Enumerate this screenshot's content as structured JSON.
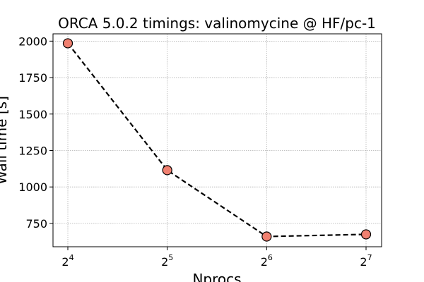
{
  "chart_data": {
    "type": "line",
    "title": "ORCA 5.0.2 timings: valinomycine @ HF/pc-1",
    "xlabel": "Nprocs",
    "ylabel": "Wall time [s]",
    "x_scale": "log2",
    "x": [
      16,
      32,
      64,
      128
    ],
    "x_tick_labels": [
      {
        "base": "2",
        "exp": "4"
      },
      {
        "base": "2",
        "exp": "5"
      },
      {
        "base": "2",
        "exp": "6"
      },
      {
        "base": "2",
        "exp": "7"
      }
    ],
    "y_ticks": [
      750,
      1000,
      1250,
      1500,
      1750,
      2000
    ],
    "y_tick_labels": [
      "750",
      "1000",
      "1250",
      "1500",
      "1750",
      "2000"
    ],
    "ylim": [
      590,
      2050
    ],
    "grid": true,
    "series": [
      {
        "values": [
          1985,
          1115,
          660,
          675
        ],
        "line_style": "dashed",
        "line_color": "#000000",
        "marker": "circle",
        "marker_color": "#f08070",
        "marker_edge_color": "#000000"
      }
    ]
  }
}
